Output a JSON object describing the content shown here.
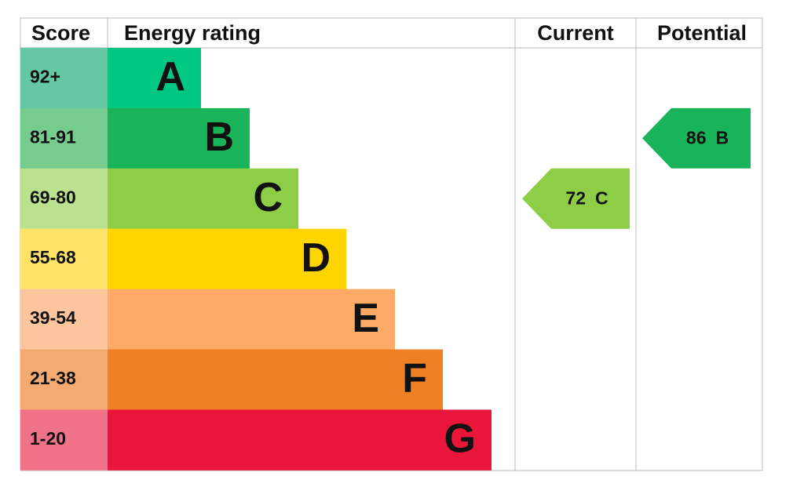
{
  "header": {
    "score": "Score",
    "energy_rating": "Energy rating",
    "current": "Current",
    "potential": "Potential"
  },
  "bands": [
    {
      "score": "92+",
      "rating": "A"
    },
    {
      "score": "81-91",
      "rating": "B"
    },
    {
      "score": "69-80",
      "rating": "C"
    },
    {
      "score": "55-68",
      "rating": "D"
    },
    {
      "score": "39-54",
      "rating": "E"
    },
    {
      "score": "21-38",
      "rating": "F"
    },
    {
      "score": "1-20",
      "rating": "G"
    }
  ],
  "current": {
    "score": 72,
    "rating": "C"
  },
  "potential": {
    "score": 86,
    "rating": "B"
  }
}
